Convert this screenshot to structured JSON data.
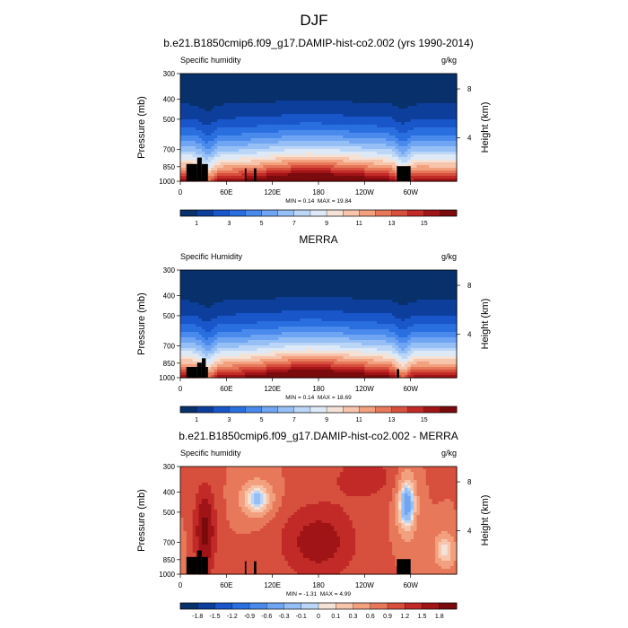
{
  "figure": {
    "title": "DJF"
  },
  "chart_data": [
    {
      "type": "heatmap",
      "title": "b.e21.B1850cmip6.f09_g17.DAMIP-hist-co2.002 (yrs 1990-2014)",
      "left_label": "Specific humidity",
      "units": "g/kg",
      "ylabel": "Pressure (mb)",
      "ylabel_right": "Height (km)",
      "x_ticks": [
        "0",
        "60E",
        "120E",
        "180",
        "120W",
        "60W"
      ],
      "x_tick_lon": [
        0,
        60,
        120,
        180,
        240,
        300
      ],
      "xlim": [
        0,
        360
      ],
      "y_ticks": [
        "300",
        "400",
        "500",
        "700",
        "850",
        "1000"
      ],
      "y_tick_p": [
        300,
        400,
        500,
        700,
        850,
        1000
      ],
      "y_log": true,
      "ylim": [
        1000,
        300
      ],
      "right_ticks": [
        "8",
        "4"
      ],
      "right_tick_p": [
        356,
        616
      ],
      "min_label": "MIN =",
      "min_value": "0.14",
      "max_label": "MAX =",
      "max_value": "19.84",
      "colorbar": {
        "labels": [
          "1",
          "3",
          "5",
          "7",
          "9",
          "11",
          "13",
          "15"
        ],
        "colors": [
          "#08306b",
          "#0d3e9c",
          "#1856c9",
          "#2a6fe0",
          "#4a8aec",
          "#6fa5f2",
          "#95bff5",
          "#bcd6f7",
          "#dde9f7",
          "#f5e2d6",
          "#f7c4ac",
          "#f2a07e",
          "#e7785a",
          "#d74f3d",
          "#c12a26",
          "#a01417",
          "#7a0a0c"
        ]
      },
      "field": "humidity",
      "mountains": "ext"
    },
    {
      "type": "heatmap",
      "title": "MERRA",
      "left_label": "Specific Humidity",
      "units": "g/kg",
      "ylabel": "Pressure (mb)",
      "ylabel_right": "Height (km)",
      "x_ticks": [
        "0",
        "60E",
        "120E",
        "180",
        "120W",
        "60W"
      ],
      "x_tick_lon": [
        0,
        60,
        120,
        180,
        240,
        300
      ],
      "xlim": [
        0,
        360
      ],
      "y_ticks": [
        "300",
        "400",
        "500",
        "700",
        "850",
        "1000"
      ],
      "y_tick_p": [
        300,
        400,
        500,
        700,
        850,
        1000
      ],
      "y_log": true,
      "ylim": [
        1000,
        300
      ],
      "right_ticks": [
        "8",
        "4"
      ],
      "right_tick_p": [
        356,
        616
      ],
      "min_label": "MIN =",
      "min_value": "0.14",
      "max_label": "MAX =",
      "max_value": "18.69",
      "colorbar": {
        "labels": [
          "1",
          "3",
          "5",
          "7",
          "9",
          "11",
          "13",
          "15"
        ],
        "colors": [
          "#08306b",
          "#0d3e9c",
          "#1856c9",
          "#2a6fe0",
          "#4a8aec",
          "#6fa5f2",
          "#95bff5",
          "#bcd6f7",
          "#dde9f7",
          "#f5e2d6",
          "#f7c4ac",
          "#f2a07e",
          "#e7785a",
          "#d74f3d",
          "#c12a26",
          "#a01417",
          "#7a0a0c"
        ]
      },
      "field": "humidity",
      "mountains": "small"
    },
    {
      "type": "heatmap",
      "title": "b.e21.B1850cmip6.f09_g17.DAMIP-hist-co2.002 - MERRA",
      "left_label": "Specific humidity",
      "units": "g/kg",
      "ylabel": "Pressure (mb)",
      "ylabel_right": "Height (km)",
      "x_ticks": [
        "0",
        "60E",
        "120E",
        "180",
        "120W",
        "60W"
      ],
      "x_tick_lon": [
        0,
        60,
        120,
        180,
        240,
        300
      ],
      "xlim": [
        0,
        360
      ],
      "y_ticks": [
        "300",
        "400",
        "500",
        "700",
        "850",
        "1000"
      ],
      "y_tick_p": [
        300,
        400,
        500,
        700,
        850,
        1000
      ],
      "y_log": true,
      "ylim": [
        1000,
        300
      ],
      "right_ticks": [
        "8",
        "4"
      ],
      "right_tick_p": [
        356,
        616
      ],
      "min_label": "MIN =",
      "min_value": "-1.31",
      "max_label": "MAX =",
      "max_value": "4.99",
      "colorbar": {
        "labels": [
          "-1.8",
          "-1.5",
          "-1.2",
          "-0.9",
          "-0.6",
          "-0.3",
          "-0.1",
          "0",
          "0.1",
          "0.3",
          "0.6",
          "0.9",
          "1.2",
          "1.5",
          "1.8"
        ],
        "colors": [
          "#08306b",
          "#0d3e9c",
          "#1856c9",
          "#2a6fe0",
          "#4a8aec",
          "#6fa5f2",
          "#95bff5",
          "#bcd6f7",
          "#f5e2d6",
          "#f7c4ac",
          "#f2a07e",
          "#e7785a",
          "#d74f3d",
          "#c12a26",
          "#a01417",
          "#7a0a0c"
        ]
      },
      "field": "diff",
      "mountains": "ext"
    }
  ]
}
